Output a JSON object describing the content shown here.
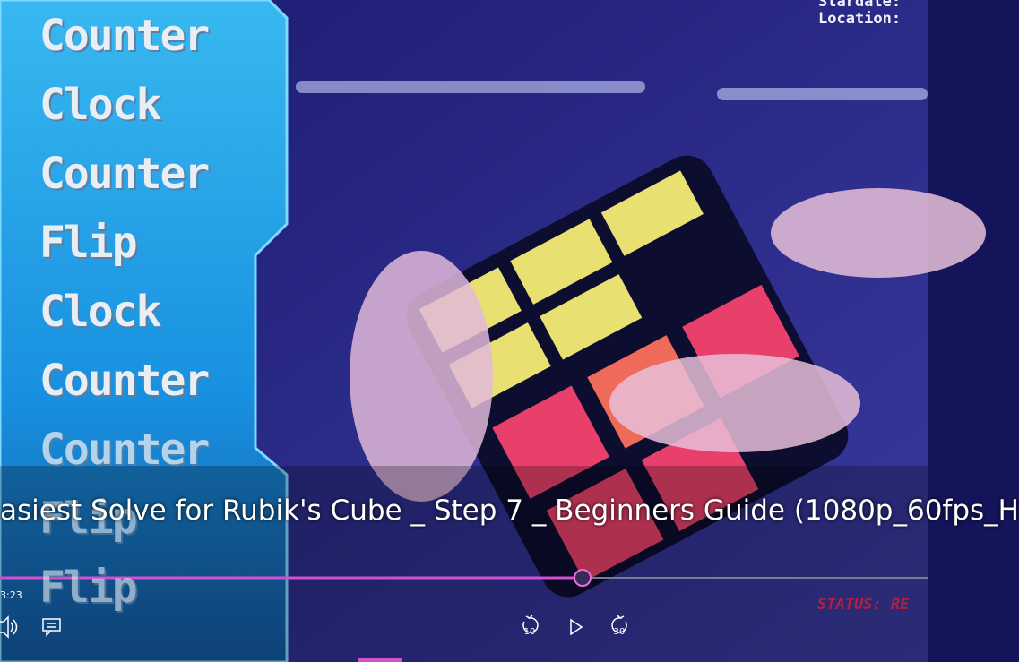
{
  "panel": {
    "words": [
      "Counter",
      "Clock",
      "Counter",
      "Flip",
      "Clock",
      "Counter",
      "Counter",
      "Flip",
      "Flip"
    ]
  },
  "overlay": {
    "stardate": "Stardate:",
    "location": "Location:",
    "status": "STATUS: RE"
  },
  "player": {
    "title": "asiest Solve for Rubik's Cube _ Step 7 _ Beginners Guide (1080p_60fps_H",
    "time": "3:23",
    "skip_back": "10",
    "skip_forward": "30"
  }
}
